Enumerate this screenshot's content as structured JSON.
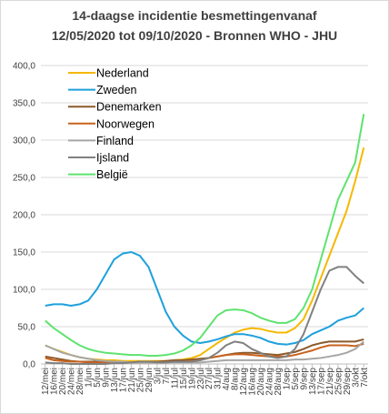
{
  "chart_data": {
    "type": "line",
    "title": [
      "14-daagse incidentie besmettingenvanaf",
      "12/05/2020 tot 09/10/2020 - Bronnen WHO - JHU"
    ],
    "categories": [
      "12/mei",
      "16/mei",
      "20/mei",
      "24/mei",
      "28/mei",
      "1/jun",
      "5/jun",
      "9/jun",
      "13/jun",
      "17/jun",
      "21/jun",
      "25/jun",
      "29/jun",
      "3/jul",
      "7/jul",
      "11/jul",
      "15/jul",
      "19/jul",
      "23/jul",
      "27/jul",
      "31/jul",
      "4/aug",
      "8/aug",
      "12/aug",
      "16/aug",
      "20/aug",
      "24/aug",
      "28/aug",
      "1/sep",
      "5/sep",
      "9/sep",
      "13/sep",
      "17/sep",
      "21/sep",
      "25/sep",
      "29/sep",
      "3/okt",
      "7/okt"
    ],
    "series": [
      {
        "name": "Nederland",
        "color": "#f5b800",
        "values": [
          25,
          20,
          16,
          12,
          9,
          7,
          6,
          5,
          5,
          4,
          4,
          4,
          4,
          4,
          4,
          5,
          6,
          8,
          12,
          20,
          28,
          35,
          42,
          46,
          48,
          47,
          44,
          42,
          42,
          48,
          60,
          85,
          115,
          145,
          175,
          205,
          245,
          290
        ]
      },
      {
        "name": "Zweden",
        "color": "#1ea0dc",
        "values": [
          78,
          80,
          80,
          78,
          80,
          85,
          100,
          120,
          140,
          148,
          150,
          145,
          130,
          100,
          70,
          50,
          38,
          30,
          28,
          30,
          33,
          37,
          40,
          40,
          38,
          35,
          30,
          27,
          26,
          28,
          32,
          40,
          45,
          50,
          58,
          62,
          65,
          75
        ]
      },
      {
        "name": "Denemarken",
        "color": "#8b5a2b",
        "values": [
          10,
          8,
          6,
          4,
          3,
          3,
          3,
          2,
          2,
          2,
          2,
          3,
          3,
          3,
          4,
          5,
          5,
          6,
          7,
          8,
          10,
          12,
          14,
          15,
          15,
          14,
          13,
          12,
          14,
          16,
          20,
          25,
          28,
          30,
          30,
          30,
          30,
          33
        ]
      },
      {
        "name": "Noorwegen",
        "color": "#c8621e",
        "values": [
          8,
          5,
          4,
          3,
          3,
          2,
          2,
          2,
          2,
          2,
          2,
          2,
          2,
          2,
          2,
          3,
          3,
          4,
          5,
          8,
          10,
          12,
          13,
          13,
          12,
          11,
          10,
          10,
          10,
          12,
          15,
          18,
          22,
          25,
          25,
          25,
          24,
          27
        ]
      },
      {
        "name": "Finland",
        "color": "#a6a6a6",
        "values": [
          25,
          20,
          15,
          12,
          9,
          7,
          5,
          4,
          3,
          3,
          2,
          2,
          2,
          2,
          2,
          2,
          2,
          2,
          2,
          3,
          4,
          5,
          5,
          5,
          5,
          5,
          5,
          5,
          5,
          6,
          6,
          7,
          8,
          10,
          12,
          15,
          20,
          30
        ]
      },
      {
        "name": "Ijsland",
        "color": "#808080",
        "values": [
          2,
          1,
          1,
          0,
          0,
          0,
          0,
          0,
          1,
          1,
          2,
          3,
          3,
          2,
          2,
          3,
          3,
          3,
          5,
          8,
          15,
          25,
          30,
          28,
          20,
          15,
          10,
          8,
          10,
          20,
          40,
          70,
          100,
          125,
          130,
          130,
          118,
          108
        ]
      },
      {
        "name": "België",
        "color": "#5ee36e",
        "values": [
          58,
          48,
          40,
          32,
          25,
          20,
          17,
          15,
          14,
          13,
          12,
          12,
          11,
          11,
          12,
          14,
          18,
          25,
          35,
          50,
          65,
          72,
          73,
          72,
          68,
          62,
          58,
          55,
          55,
          60,
          75,
          100,
          140,
          180,
          220,
          245,
          270,
          335
        ]
      }
    ],
    "ylim": [
      0,
      400
    ],
    "yticks": [
      {
        "value": 0,
        "label": "0,0"
      },
      {
        "value": 50,
        "label": "50,0"
      },
      {
        "value": 100,
        "label": "100,0"
      },
      {
        "value": 150,
        "label": "150,0"
      },
      {
        "value": 200,
        "label": "200,0"
      },
      {
        "value": 250,
        "label": "250,0"
      },
      {
        "value": 300,
        "label": "300,0"
      },
      {
        "value": 350,
        "label": "350,0"
      },
      {
        "value": 400,
        "label": "400,0"
      }
    ],
    "grid": true
  }
}
